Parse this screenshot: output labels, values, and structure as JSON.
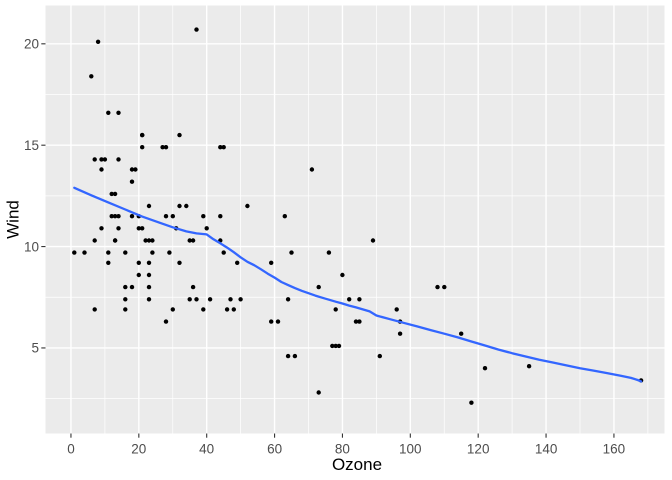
{
  "style": {
    "background": "#FFFFFF",
    "panel_bg": "#EBEBEB",
    "grid_color": "#FFFFFF",
    "point_color": "#000000",
    "tick_label_color": "#4D4D4D",
    "axis_title_color": "#000000",
    "tick_mark_color": "#333333"
  },
  "chart_data": {
    "type": "scatter",
    "title": "",
    "xlabel": "Ozone",
    "ylabel": "Wind",
    "xlim": [
      -7.5,
      174.9
    ],
    "ylim": [
      0.78,
      21.89
    ],
    "grid": "on",
    "legend": "none",
    "x_major_ticks": [
      0,
      20,
      40,
      60,
      80,
      100,
      120,
      140,
      160
    ],
    "x_minor_ticks": [
      10,
      30,
      50,
      70,
      90,
      110,
      130,
      150,
      170
    ],
    "y_major_ticks": [
      5,
      10,
      15,
      20
    ],
    "y_minor_ticks": [
      2.5,
      7.5,
      12.5,
      17.5
    ],
    "points": [
      [
        41,
        7.4
      ],
      [
        36,
        8
      ],
      [
        12,
        12.6
      ],
      [
        18,
        11.5
      ],
      [
        28,
        14.9
      ],
      [
        23,
        8.6
      ],
      [
        19,
        13.8
      ],
      [
        8,
        20.1
      ],
      [
        7,
        6.9
      ],
      [
        16,
        9.7
      ],
      [
        11,
        9.2
      ],
      [
        14,
        10.9
      ],
      [
        18,
        13.2
      ],
      [
        14,
        11.5
      ],
      [
        34,
        12
      ],
      [
        6,
        18.4
      ],
      [
        30,
        11.5
      ],
      [
        11,
        9.7
      ],
      [
        1,
        9.7
      ],
      [
        11,
        16.6
      ],
      [
        4,
        9.7
      ],
      [
        32,
        12
      ],
      [
        23,
        12
      ],
      [
        45,
        14.9
      ],
      [
        115,
        5.7
      ],
      [
        37,
        7.4
      ],
      [
        29,
        9.7
      ],
      [
        71,
        13.8
      ],
      [
        39,
        11.5
      ],
      [
        23,
        8
      ],
      [
        21,
        14.9
      ],
      [
        37,
        20.7
      ],
      [
        20,
        9.2
      ],
      [
        12,
        11.5
      ],
      [
        13,
        10.3
      ],
      [
        135,
        4.1
      ],
      [
        49,
        9.2
      ],
      [
        32,
        9.2
      ],
      [
        64,
        4.6
      ],
      [
        40,
        10.9
      ],
      [
        77,
        5.1
      ],
      [
        97,
        6.3
      ],
      [
        97,
        5.7
      ],
      [
        85,
        7.4
      ],
      [
        10,
        14.3
      ],
      [
        27,
        14.9
      ],
      [
        7,
        14.3
      ],
      [
        48,
        6.9
      ],
      [
        35,
        10.3
      ],
      [
        61,
        6.3
      ],
      [
        79,
        5.1
      ],
      [
        63,
        11.5
      ],
      [
        16,
        6.9
      ],
      [
        80,
        8.6
      ],
      [
        108,
        8
      ],
      [
        20,
        8.6
      ],
      [
        52,
        12
      ],
      [
        82,
        7.4
      ],
      [
        50,
        7.4
      ],
      [
        64,
        7.4
      ],
      [
        59,
        9.2
      ],
      [
        39,
        6.9
      ],
      [
        9,
        13.8
      ],
      [
        16,
        7.4
      ],
      [
        78,
        6.9
      ],
      [
        35,
        7.4
      ],
      [
        66,
        4.6
      ],
      [
        122,
        4
      ],
      [
        89,
        10.3
      ],
      [
        110,
        8
      ],
      [
        44,
        11.5
      ],
      [
        28,
        11.5
      ],
      [
        65,
        9.7
      ],
      [
        22,
        10.3
      ],
      [
        59,
        6.3
      ],
      [
        23,
        7.4
      ],
      [
        31,
        10.9
      ],
      [
        44,
        10.3
      ],
      [
        21,
        15.5
      ],
      [
        9,
        14.3
      ],
      [
        45,
        9.7
      ],
      [
        168,
        3.4
      ],
      [
        73,
        8
      ],
      [
        76,
        9.7
      ],
      [
        118,
        2.3
      ],
      [
        84,
        6.3
      ],
      [
        85,
        6.3
      ],
      [
        96,
        6.9
      ],
      [
        78,
        5.1
      ],
      [
        73,
        2.8
      ],
      [
        91,
        4.6
      ],
      [
        47,
        7.4
      ],
      [
        32,
        15.5
      ],
      [
        20,
        10.9
      ],
      [
        23,
        10.3
      ],
      [
        21,
        10.9
      ],
      [
        24,
        9.7
      ],
      [
        44,
        14.9
      ],
      [
        21,
        15.5
      ],
      [
        28,
        6.3
      ],
      [
        9,
        10.9
      ],
      [
        13,
        11.5
      ],
      [
        46,
        6.9
      ],
      [
        18,
        13.8
      ],
      [
        13,
        10.3
      ],
      [
        24,
        10.3
      ],
      [
        16,
        8
      ],
      [
        13,
        12.6
      ],
      [
        23,
        9.2
      ],
      [
        36,
        10.3
      ],
      [
        7,
        10.3
      ],
      [
        14,
        16.6
      ],
      [
        30,
        6.9
      ],
      [
        14,
        14.3
      ],
      [
        18,
        8
      ],
      [
        20,
        11.5
      ]
    ],
    "smooth": {
      "method": "loess",
      "se": false,
      "color": "#3366FF",
      "line": [
        [
          1,
          12.9
        ],
        [
          6,
          12.53
        ],
        [
          11,
          12.18
        ],
        [
          16,
          11.83
        ],
        [
          21,
          11.48
        ],
        [
          26,
          11.18
        ],
        [
          30,
          10.95
        ],
        [
          34,
          10.75
        ],
        [
          37,
          10.65
        ],
        [
          40,
          10.6
        ],
        [
          42,
          10.36
        ],
        [
          44,
          10.16
        ],
        [
          46,
          9.95
        ],
        [
          48,
          9.72
        ],
        [
          50,
          9.47
        ],
        [
          52,
          9.25
        ],
        [
          54,
          9.08
        ],
        [
          56,
          8.88
        ],
        [
          58,
          8.66
        ],
        [
          60,
          8.47
        ],
        [
          62,
          8.25
        ],
        [
          64,
          8.1
        ],
        [
          66,
          7.95
        ],
        [
          68,
          7.82
        ],
        [
          70,
          7.7
        ],
        [
          72,
          7.58
        ],
        [
          74,
          7.48
        ],
        [
          76,
          7.38
        ],
        [
          78,
          7.28
        ],
        [
          80,
          7.19
        ],
        [
          82,
          7.09
        ],
        [
          84,
          7.0
        ],
        [
          86,
          6.9
        ],
        [
          88,
          6.8
        ],
        [
          90,
          6.6
        ],
        [
          94,
          6.42
        ],
        [
          98,
          6.24
        ],
        [
          102,
          6.06
        ],
        [
          106,
          5.88
        ],
        [
          110,
          5.7
        ],
        [
          114,
          5.52
        ],
        [
          118,
          5.32
        ],
        [
          122,
          5.12
        ],
        [
          126,
          4.92
        ],
        [
          130,
          4.74
        ],
        [
          134,
          4.58
        ],
        [
          138,
          4.42
        ],
        [
          142,
          4.28
        ],
        [
          146,
          4.14
        ],
        [
          150,
          4.0
        ],
        [
          154,
          3.88
        ],
        [
          158,
          3.76
        ],
        [
          162,
          3.63
        ],
        [
          165,
          3.52
        ],
        [
          167,
          3.42
        ],
        [
          168,
          3.35
        ]
      ]
    }
  }
}
